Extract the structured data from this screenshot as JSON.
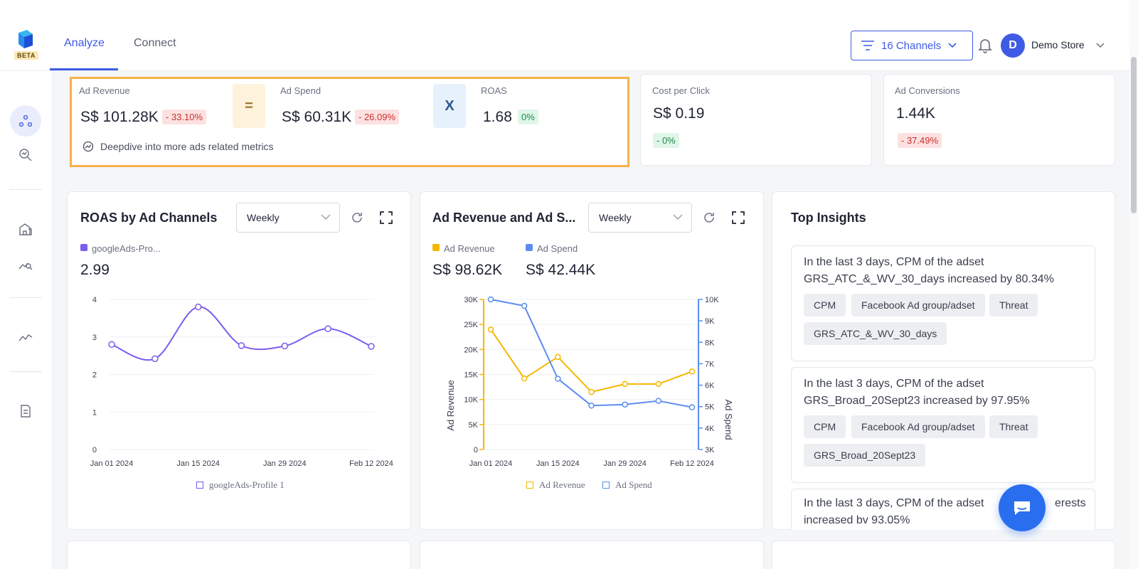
{
  "header": {
    "beta_label": "BETA",
    "tabs": [
      {
        "label": "Analyze"
      },
      {
        "label": "Connect"
      }
    ],
    "channels_label": "16 Channels",
    "avatar_initial": "D",
    "store_name": "Demo Store"
  },
  "metrics": {
    "ad_revenue": {
      "label": "Ad Revenue",
      "value": "S$ 101.28K",
      "change": "- 33.10%"
    },
    "equals_symbol": "=",
    "ad_spend": {
      "label": "Ad Spend",
      "value": "S$ 60.31K",
      "change": "- 26.09%"
    },
    "times_symbol": "X",
    "roas": {
      "label": "ROAS",
      "value": "1.68",
      "change": "0%"
    },
    "deepdive_label": "Deepdive into more ads related metrics",
    "cpc": {
      "label": "Cost per Click",
      "value": "S$ 0.19",
      "change": "- 0%"
    },
    "conversions": {
      "label": "Ad Conversions",
      "value": "1.44K",
      "change": "- 37.49%"
    }
  },
  "roas_panel": {
    "title": "ROAS by Ad Channels",
    "select_value": "Weekly",
    "legend_label": "googleAds-Pro...",
    "value": "2.99",
    "bottom_legend": "googleAds-Profile 1"
  },
  "rev_panel": {
    "title": "Ad Revenue and Ad S...",
    "select_value": "Weekly",
    "legend_revenue": "Ad Revenue",
    "legend_spend": "Ad Spend",
    "revenue_value": "S$ 98.62K",
    "spend_value": "S$ 42.44K",
    "bottom_legend_revenue": "Ad Revenue",
    "bottom_legend_spend": "Ad Spend"
  },
  "insights": {
    "title": "Top Insights",
    "items": [
      {
        "text": "In the last 3 days, CPM of the adset GRS_ATC_&_WV_30_days increased by 80.34%",
        "tags": [
          "CPM",
          "Facebook Ad group/adset",
          "Threat",
          "GRS_ATC_&_WV_30_days"
        ]
      },
      {
        "text": "In the last 3 days, CPM of the adset GRS_Broad_20Sept23 increased by 97.95%",
        "tags": [
          "CPM",
          "Facebook Ad group/adset",
          "Threat",
          "GRS_Broad_20Sept23"
        ]
      },
      {
        "text_start": "In the last 3 days, CPM of the adset",
        "text_end": "erests",
        "text_line2": "increased bv 93.05%"
      }
    ]
  },
  "colors": {
    "accent": "#3f5be3",
    "highlight": "#f7b24a",
    "roas_line": "#7c5cf0",
    "revenue_line": "#f5b700",
    "spend_line": "#5b8def"
  },
  "chart_data": [
    {
      "type": "line",
      "title": "ROAS by Ad Channels",
      "x_ticks": [
        "Jan 01 2024",
        "Jan 15 2024",
        "Jan 29 2024",
        "Feb 12 2024"
      ],
      "y_ticks": [
        "0",
        "1",
        "2",
        "3",
        "4"
      ],
      "ylim": [
        0,
        4
      ],
      "series": [
        {
          "name": "googleAds-Profile 1",
          "color": "#7c5cf0",
          "x": [
            "2024-01-01",
            "2024-01-08",
            "2024-01-15",
            "2024-01-22",
            "2024-01-29",
            "2024-02-05",
            "2024-02-12"
          ],
          "values": [
            2.8,
            2.42,
            3.8,
            2.77,
            2.76,
            3.22,
            2.75
          ]
        }
      ]
    },
    {
      "type": "line",
      "title": "Ad Revenue and Ad S...",
      "x_ticks": [
        "Jan 01 2024",
        "Jan 15 2024",
        "Jan 29 2024",
        "Feb 12 2024"
      ],
      "y_left_ticks": [
        "0",
        "5K",
        "10K",
        "15K",
        "20K",
        "25K",
        "30K"
      ],
      "y_right_ticks": [
        "3K",
        "4K",
        "5K",
        "6K",
        "7K",
        "8K",
        "9K",
        "10K"
      ],
      "ylabel_left": "Ad Revenue",
      "ylabel_right": "Ad Spend",
      "ylim_left": [
        0,
        30000
      ],
      "ylim_right": [
        3000,
        10000
      ],
      "series": [
        {
          "name": "Ad Revenue",
          "axis": "left",
          "color": "#f5b700",
          "x": [
            "2024-01-01",
            "2024-01-04",
            "2024-01-08",
            "2024-01-11",
            "2024-01-15",
            "2024-01-18",
            "2024-01-22",
            "2024-01-25",
            "2024-01-29",
            "2024-02-01",
            "2024-02-05",
            "2024-02-08",
            "2024-02-12"
          ],
          "values": [
            24000,
            null,
            14200,
            null,
            18500,
            null,
            11500,
            null,
            13100,
            null,
            13100,
            null,
            15600
          ]
        },
        {
          "name": "Ad Spend",
          "axis": "right",
          "color": "#5b8def",
          "x": [
            "2024-01-01",
            "2024-01-04",
            "2024-01-08",
            "2024-01-11",
            "2024-01-15",
            "2024-01-18",
            "2024-01-22",
            "2024-01-25",
            "2024-01-29",
            "2024-02-01",
            "2024-02-05",
            "2024-02-08",
            "2024-02-12"
          ],
          "values": [
            10000,
            null,
            9700,
            null,
            6300,
            null,
            5050,
            null,
            5100,
            null,
            5270,
            null,
            4970
          ]
        }
      ]
    }
  ]
}
